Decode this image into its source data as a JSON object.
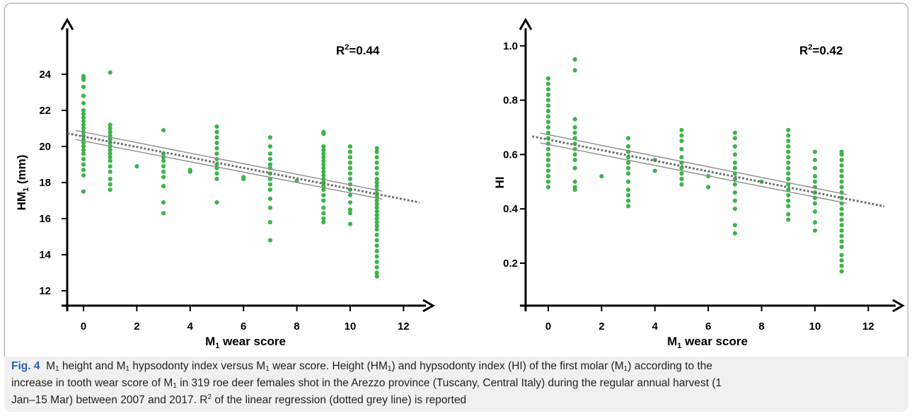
{
  "figure": {
    "caption": {
      "label": "Fig. 4",
      "l1a": "M",
      "l1b": "1",
      "l1c": " height and M",
      "l1d": "1",
      "l1e": " hypsodonty index versus M",
      "l1f": "1",
      "l1g": " wear score. Height (HM",
      "l1h": "1",
      "l1i": ") and hypsodonty index (HI) of the first molar (M",
      "l1j": "1",
      "l1k": ") according to the",
      "l2a": "increase in tooth wear score of M",
      "l2b": "1",
      "l2c": " in 319 roe deer females shot in the Arezzo province (Tuscany, Central Italy) during the regular annual harvest (1",
      "l3a": "Jan–15 Mar) between 2007 and 2017. R",
      "l3b": "2",
      "l3c": " of the linear regression (dotted grey line) is reported"
    }
  },
  "chart_data": [
    {
      "type": "scatter",
      "xlabel_main": "M",
      "xlabel_sub": "1",
      "xlabel_rest": " wear score",
      "ylabel_main": "HM",
      "ylabel_sub": "1",
      "ylabel_rest": " (mm)",
      "r2_label": "R",
      "r2_sup": "2",
      "r2_value": "=0.44",
      "x_ticks": [
        "0",
        "2",
        "4",
        "6",
        "8",
        "10",
        "12"
      ],
      "y_ticks": [
        "12",
        "14",
        "16",
        "18",
        "20",
        "22",
        "24"
      ],
      "xlim": [
        -0.6,
        13.2
      ],
      "ylim": [
        11.2,
        26.2
      ],
      "regression": {
        "intercept": 20.55,
        "slope": -0.29,
        "x_range": [
          -0.6,
          12.6
        ]
      },
      "ci_band": {
        "offset_at_start": 0.25,
        "offset_at_end": 0.22
      },
      "marker_color": "#3db34a",
      "points": [
        {
          "x": 0,
          "y": [
            17.5,
            18.4,
            18.7,
            19.0,
            19.3,
            19.6,
            19.8,
            20.0,
            20.2,
            20.4,
            20.6,
            20.8,
            21.0,
            21.2,
            21.4,
            21.6,
            21.8,
            22.0,
            22.4,
            22.8,
            23.3,
            23.7,
            23.8,
            23.9
          ]
        },
        {
          "x": 1,
          "y": [
            17.6,
            17.9,
            18.2,
            18.6,
            18.9,
            19.2,
            19.4,
            19.6,
            19.8,
            20.0,
            20.2,
            20.4,
            20.6,
            20.8,
            21.0,
            21.2,
            24.1
          ]
        },
        {
          "x": 2,
          "y": [
            18.9
          ]
        },
        {
          "x": 3,
          "y": [
            16.3,
            16.9,
            17.8,
            18.3,
            18.6,
            18.9,
            19.2,
            19.4,
            19.6,
            20.9
          ]
        },
        {
          "x": 4,
          "y": [
            18.6,
            18.7
          ]
        },
        {
          "x": 5,
          "y": [
            16.9,
            18.2,
            18.5,
            18.8,
            19.0,
            19.3,
            19.6,
            19.9,
            20.2,
            20.5,
            20.8,
            21.1
          ]
        },
        {
          "x": 6,
          "y": [
            18.2,
            18.3
          ]
        },
        {
          "x": 7,
          "y": [
            14.8,
            15.8,
            16.6,
            17.1,
            17.6,
            17.9,
            18.2,
            18.5,
            18.8,
            19.0,
            19.3,
            19.6,
            20.0,
            20.5
          ]
        },
        {
          "x": 8,
          "y": [
            18.1
          ]
        },
        {
          "x": 9,
          "y": [
            15.8,
            16.0,
            16.3,
            16.6,
            17.0,
            17.3,
            17.6,
            17.8,
            18.0,
            18.2,
            18.4,
            18.6,
            18.8,
            19.0,
            19.2,
            19.4,
            19.6,
            19.8,
            20.0,
            20.7,
            20.8
          ]
        },
        {
          "x": 10,
          "y": [
            15.7,
            16.3,
            16.5,
            16.9,
            17.3,
            17.6,
            17.9,
            18.2,
            18.5,
            18.8,
            19.1,
            19.4,
            19.7,
            20.0
          ]
        },
        {
          "x": 11,
          "y": [
            12.8,
            13.0,
            13.3,
            13.6,
            13.9,
            14.2,
            14.5,
            14.8,
            15.1,
            15.4,
            15.6,
            15.8,
            16.0,
            16.2,
            16.4,
            16.6,
            16.8,
            17.0,
            17.2,
            17.4,
            17.6,
            17.8,
            18.0,
            18.2,
            18.5,
            18.8,
            19.1,
            19.4,
            19.7,
            19.9
          ]
        }
      ]
    },
    {
      "type": "scatter",
      "xlabel_main": "M",
      "xlabel_sub": "1",
      "xlabel_rest": " wear score",
      "ylabel_main": "HI",
      "ylabel_sub": "",
      "ylabel_rest": "",
      "r2_label": "R",
      "r2_sup": "2",
      "r2_value": "=0.42",
      "x_ticks": [
        "0",
        "2",
        "4",
        "6",
        "8",
        "10",
        "12"
      ],
      "y_ticks": [
        "0.2",
        "0.4",
        "0.6",
        "0.8",
        "1.0"
      ],
      "xlim": [
        -0.6,
        13.2
      ],
      "ylim": [
        0.05,
        1.1
      ],
      "regression": {
        "intercept": 0.655,
        "slope": -0.0195,
        "x_range": [
          -0.6,
          12.6
        ]
      },
      "ci_band": {
        "offset_at_start": 0.018,
        "offset_at_end": 0.016
      },
      "marker_color": "#3db34a",
      "points": [
        {
          "x": 0,
          "y": [
            0.48,
            0.5,
            0.52,
            0.54,
            0.56,
            0.58,
            0.6,
            0.62,
            0.64,
            0.66,
            0.68,
            0.7,
            0.72,
            0.74,
            0.76,
            0.78,
            0.8,
            0.82,
            0.84,
            0.86,
            0.88
          ]
        },
        {
          "x": 1,
          "y": [
            0.47,
            0.48,
            0.5,
            0.55,
            0.58,
            0.6,
            0.62,
            0.64,
            0.66,
            0.68,
            0.7,
            0.73,
            0.91,
            0.95
          ]
        },
        {
          "x": 2,
          "y": [
            0.52
          ]
        },
        {
          "x": 3,
          "y": [
            0.41,
            0.43,
            0.45,
            0.47,
            0.5,
            0.53,
            0.55,
            0.57,
            0.59,
            0.61,
            0.63,
            0.66
          ]
        },
        {
          "x": 4,
          "y": [
            0.54,
            0.58
          ]
        },
        {
          "x": 5,
          "y": [
            0.49,
            0.51,
            0.53,
            0.55,
            0.57,
            0.59,
            0.62,
            0.65,
            0.67,
            0.69
          ]
        },
        {
          "x": 6,
          "y": [
            0.48,
            0.52
          ]
        },
        {
          "x": 7,
          "y": [
            0.31,
            0.34,
            0.4,
            0.43,
            0.46,
            0.49,
            0.51,
            0.53,
            0.55,
            0.57,
            0.6,
            0.63,
            0.66,
            0.68
          ]
        },
        {
          "x": 8,
          "y": [
            0.5
          ]
        },
        {
          "x": 9,
          "y": [
            0.36,
            0.38,
            0.41,
            0.43,
            0.45,
            0.47,
            0.49,
            0.51,
            0.53,
            0.55,
            0.57,
            0.59,
            0.61,
            0.63,
            0.65,
            0.67,
            0.69
          ]
        },
        {
          "x": 10,
          "y": [
            0.32,
            0.35,
            0.39,
            0.42,
            0.44,
            0.46,
            0.48,
            0.5,
            0.52,
            0.55,
            0.58,
            0.61
          ]
        },
        {
          "x": 11,
          "y": [
            0.17,
            0.19,
            0.21,
            0.23,
            0.26,
            0.28,
            0.3,
            0.32,
            0.34,
            0.36,
            0.38,
            0.4,
            0.42,
            0.44,
            0.46,
            0.48,
            0.5,
            0.52,
            0.54,
            0.56,
            0.58,
            0.6,
            0.61
          ]
        }
      ]
    }
  ]
}
